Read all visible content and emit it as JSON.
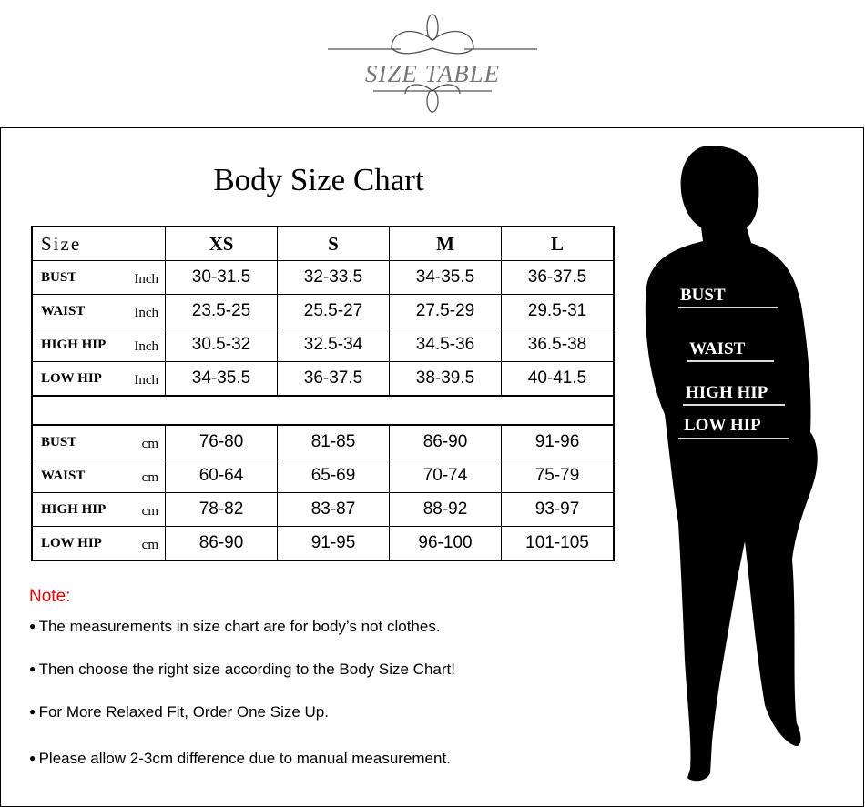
{
  "logo": {
    "text": "SIZE TABLE"
  },
  "title": "Body Size Chart",
  "table": {
    "header": [
      "Size",
      "XS",
      "S",
      "M",
      "L"
    ],
    "inch_rows": [
      {
        "label": "BUST",
        "unit": "Inch",
        "values": [
          "30-31.5",
          "32-33.5",
          "34-35.5",
          "36-37.5"
        ]
      },
      {
        "label": "WAIST",
        "unit": "Inch",
        "values": [
          "23.5-25",
          "25.5-27",
          "27.5-29",
          "29.5-31"
        ]
      },
      {
        "label": "HIGH HIP",
        "unit": "Inch",
        "values": [
          "30.5-32",
          "32.5-34",
          "34.5-36",
          "36.5-38"
        ]
      },
      {
        "label": "LOW HIP",
        "unit": "Inch",
        "values": [
          "34-35.5",
          "36-37.5",
          "38-39.5",
          "40-41.5"
        ]
      }
    ],
    "cm_rows": [
      {
        "label": "BUST",
        "unit": "cm",
        "values": [
          "76-80",
          "81-85",
          "86-90",
          "91-96"
        ]
      },
      {
        "label": "WAIST",
        "unit": "cm",
        "values": [
          "60-64",
          "65-69",
          "70-74",
          "75-79"
        ]
      },
      {
        "label": "HIGH HIP",
        "unit": "cm",
        "values": [
          "78-82",
          "83-87",
          "88-92",
          "93-97"
        ]
      },
      {
        "label": "LOW HIP",
        "unit": "cm",
        "values": [
          "86-90",
          "91-95",
          "96-100",
          "101-105"
        ]
      }
    ]
  },
  "note": {
    "heading": "Note:",
    "items": [
      "The measurements in size chart are for body’s not clothes.",
      "Then choose the right size according to the Body Size Chart!",
      "For More Relaxed Fit, Order One Size Up.",
      "Please allow 2-3cm difference due to manual measurement."
    ]
  },
  "figure": {
    "labels": [
      "BUST",
      "WAIST",
      "HIGH HIP",
      "LOW HIP"
    ]
  }
}
